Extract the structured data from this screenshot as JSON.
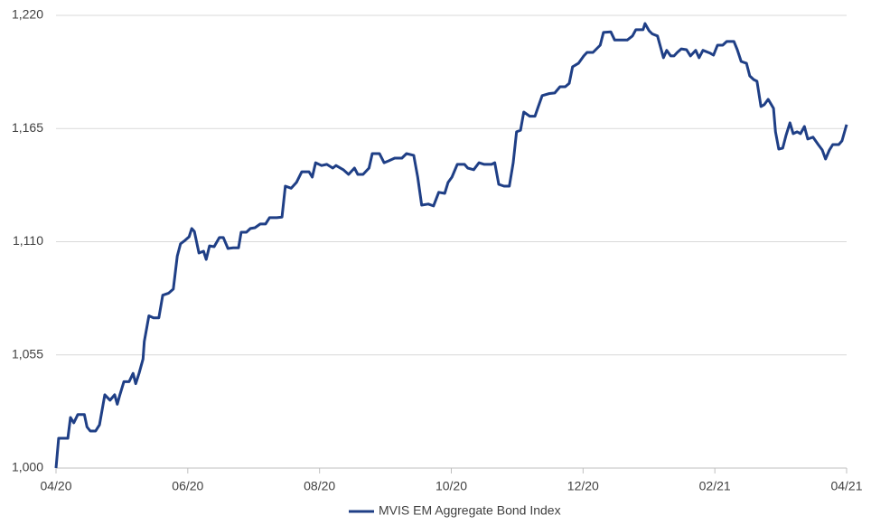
{
  "chart_data": {
    "type": "line",
    "x": [
      0,
      0.04,
      0.18,
      0.22,
      0.27,
      0.33,
      0.43,
      0.47,
      0.52,
      0.6,
      0.66,
      0.74,
      0.82,
      0.89,
      0.93,
      0.97,
      1.03,
      1.11,
      1.17,
      1.21,
      1.26,
      1.32,
      1.34,
      1.41,
      1.48,
      1.56,
      1.62,
      1.71,
      1.78,
      1.84,
      1.89,
      1.96,
      2.02,
      2.06,
      2.1,
      2.17,
      2.24,
      2.28,
      2.33,
      2.4,
      2.48,
      2.54,
      2.61,
      2.69,
      2.77,
      2.81,
      2.89,
      2.95,
      3.02,
      3.1,
      3.18,
      3.24,
      3.35,
      3.43,
      3.48,
      3.57,
      3.65,
      3.73,
      3.84,
      3.89,
      3.94,
      4.03,
      4.11,
      4.2,
      4.25,
      4.36,
      4.44,
      4.53,
      4.58,
      4.66,
      4.75,
      4.8,
      4.91,
      4.98,
      5.05,
      5.14,
      5.25,
      5.32,
      5.43,
      5.49,
      5.55,
      5.65,
      5.73,
      5.81,
      5.9,
      5.95,
      6.01,
      6.09,
      6.2,
      6.25,
      6.34,
      6.42,
      6.5,
      6.61,
      6.66,
      6.72,
      6.8,
      6.88,
      6.94,
      6.99,
      7.05,
      7.1,
      7.19,
      7.27,
      7.32,
      7.38,
      7.49,
      7.57,
      7.65,
      7.73,
      7.79,
      7.84,
      7.93,
      8.01,
      8.06,
      8.15,
      8.26,
      8.31,
      8.42,
      8.48,
      8.58,
      8.67,
      8.75,
      8.8,
      8.91,
      8.94,
      9,
      9.05,
      9.13,
      9.22,
      9.27,
      9.33,
      9.38,
      9.43,
      9.49,
      9.57,
      9.63,
      9.71,
      9.76,
      9.82,
      9.93,
      9.98,
      10.04,
      10.12,
      10.18,
      10.29,
      10.34,
      10.4,
      10.48,
      10.53,
      10.59,
      10.64,
      10.7,
      10.75,
      10.81,
      10.89,
      10.92,
      10.97,
      11.03,
      11.08,
      11.14,
      11.19,
      11.25,
      11.3,
      11.36,
      11.41,
      11.49,
      11.57,
      11.63,
      11.68,
      11.74,
      11.79,
      11.88,
      11.93,
      12
    ],
    "series": [
      {
        "name": "MVIS EM Aggregate Bond Index",
        "color": "#1f3f86",
        "values": [
          1000,
          1014.5,
          1014.5,
          1024.6,
          1022,
          1026,
          1026,
          1020,
          1018,
          1018,
          1021,
          1035.6,
          1033,
          1035.6,
          1031,
          1035.6,
          1042,
          1042,
          1046,
          1041,
          1046,
          1053,
          1061.5,
          1074,
          1073,
          1073,
          1084,
          1085,
          1087,
          1103,
          1109,
          1110.7,
          1112.4,
          1116.4,
          1115,
          1104.5,
          1105.4,
          1101.4,
          1108,
          1107.6,
          1112,
          1112,
          1106.7,
          1107,
          1107,
          1114.6,
          1114.6,
          1116.4,
          1116.8,
          1118.6,
          1118.6,
          1121.7,
          1121.7,
          1122,
          1137,
          1136,
          1138.8,
          1144,
          1144,
          1141.4,
          1148.4,
          1147,
          1147.6,
          1145.8,
          1147,
          1145,
          1142.7,
          1145.8,
          1142.7,
          1142.7,
          1145.8,
          1152.8,
          1152.8,
          1148.4,
          1149.3,
          1150.6,
          1150.6,
          1152.8,
          1152,
          1141.4,
          1127.8,
          1128.3,
          1127.4,
          1134,
          1133.5,
          1138.8,
          1141.4,
          1147.6,
          1147.6,
          1145.8,
          1145,
          1148.4,
          1147.6,
          1147.6,
          1148.4,
          1137.9,
          1137,
          1137,
          1148.4,
          1163.4,
          1164.2,
          1173,
          1171,
          1171,
          1175.7,
          1181,
          1182,
          1182.3,
          1185.3,
          1185.3,
          1187,
          1195,
          1196.7,
          1200.3,
          1202,
          1202,
          1205.5,
          1211.7,
          1212,
          1208,
          1208,
          1208,
          1210,
          1213,
          1213,
          1216,
          1212.6,
          1211,
          1210,
          1199.4,
          1203,
          1200.3,
          1200.3,
          1202,
          1203.7,
          1203.3,
          1200.3,
          1203,
          1199.4,
          1203,
          1201.6,
          1200.7,
          1205.5,
          1205.5,
          1207.3,
          1207.3,
          1203.3,
          1197.6,
          1196.7,
          1190.6,
          1188.8,
          1188,
          1175.7,
          1176.6,
          1179.2,
          1174.8,
          1163.4,
          1155,
          1155.5,
          1161.6,
          1167.8,
          1162.5,
          1163.4,
          1162.5,
          1166,
          1159.9,
          1160.8,
          1157.2,
          1154.6,
          1150.2,
          1154.6,
          1157.2,
          1157.2,
          1159,
          1166.9
        ]
      }
    ],
    "xlim": [
      0,
      12
    ],
    "xticks": [
      {
        "value": 0,
        "label": "04/20"
      },
      {
        "value": 2,
        "label": "06/20"
      },
      {
        "value": 4,
        "label": "08/20"
      },
      {
        "value": 6,
        "label": "10/20"
      },
      {
        "value": 8,
        "label": "12/20"
      },
      {
        "value": 10,
        "label": "02/21"
      },
      {
        "value": 12,
        "label": "04/21"
      }
    ],
    "ylim": [
      1000,
      1220
    ],
    "yticks": [
      {
        "value": 1000,
        "label": "1,000"
      },
      {
        "value": 1055,
        "label": "1,055"
      },
      {
        "value": 1110,
        "label": "1,110"
      },
      {
        "value": 1165,
        "label": "1,165"
      },
      {
        "value": 1220,
        "label": "1,220"
      }
    ],
    "grid": true,
    "legend": "bottom"
  }
}
